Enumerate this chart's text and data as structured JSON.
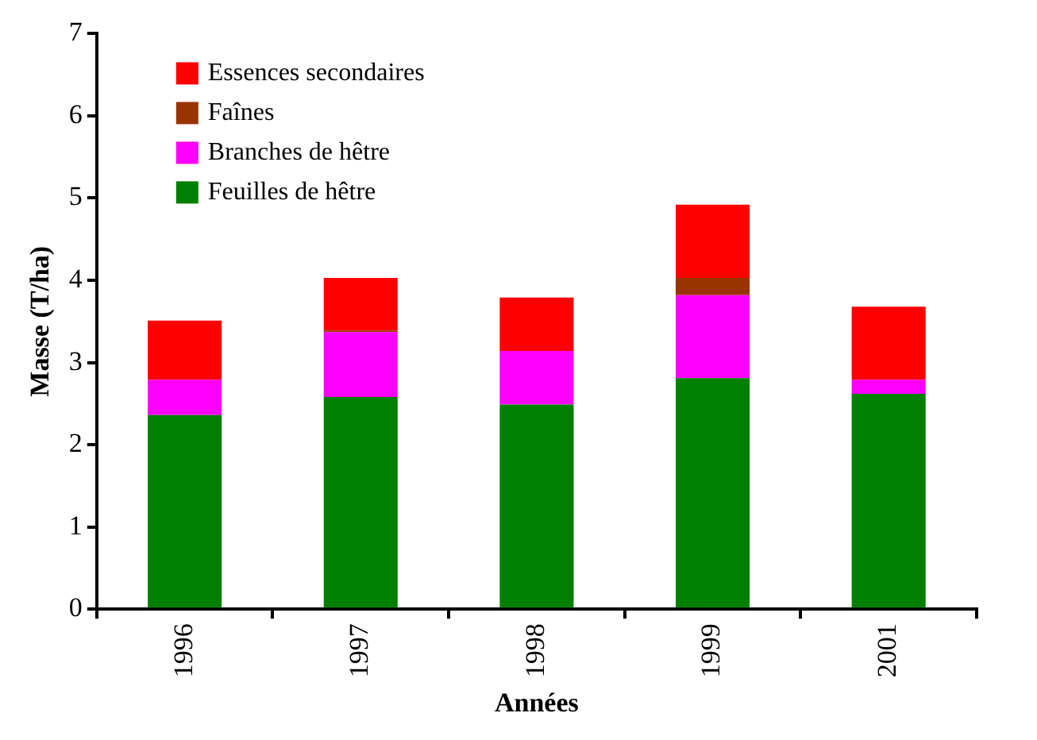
{
  "chart_data": {
    "type": "bar",
    "xlabel": "Années",
    "ylabel": "Masse (T/ha)",
    "categories": [
      "1996",
      "1997",
      "1998",
      "1999",
      "2001"
    ],
    "stacked": true,
    "ylim": [
      0,
      7
    ],
    "yticks": [
      0,
      1,
      2,
      3,
      4,
      5,
      6,
      7
    ],
    "grid": false,
    "legend": "top left",
    "series": [
      {
        "name": "Feuilles de hêtre",
        "color": "#008000",
        "values": [
          2.36,
          2.58,
          2.49,
          2.81,
          2.62
        ]
      },
      {
        "name": "Branches de hêtre",
        "color": "#ff00ff",
        "values": [
          0.43,
          0.79,
          0.65,
          1.01,
          0.17
        ]
      },
      {
        "name": "Faînes",
        "color": "#993300",
        "values": [
          0,
          0.02,
          0,
          0.21,
          0
        ]
      },
      {
        "name": "Essences secondaires",
        "color": "#ff0000",
        "values": [
          0.72,
          0.64,
          0.65,
          0.89,
          0.89
        ]
      }
    ]
  }
}
